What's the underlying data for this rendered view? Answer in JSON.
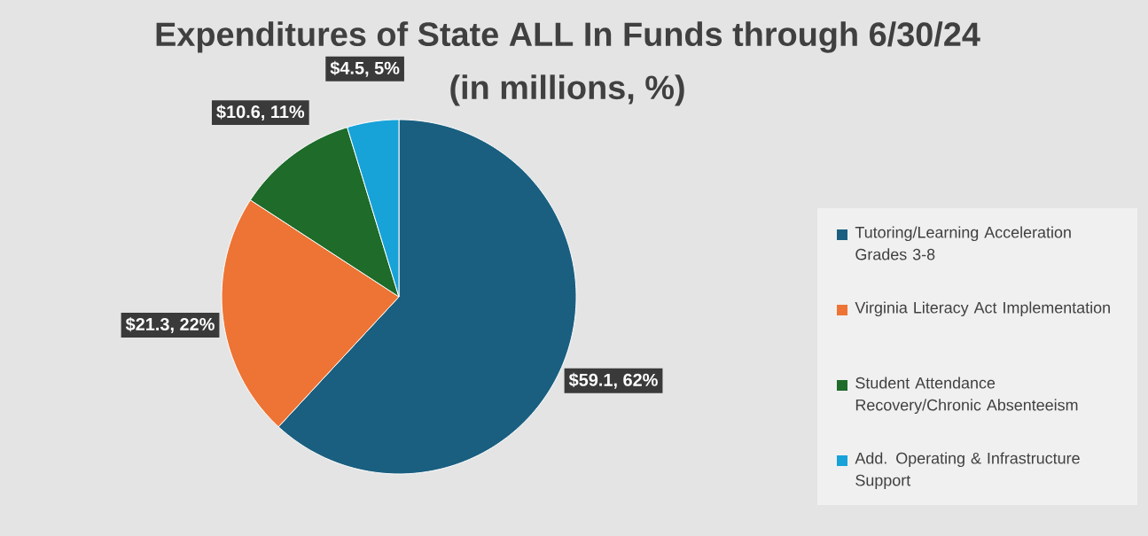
{
  "chart_data": {
    "type": "pie",
    "title": "Expenditures of State ALL In Funds through 6/30/24",
    "subtitle": "(in millions, %)",
    "categories": [
      "Tutoring/Learning Acceleration Grades 3-8",
      "Virginia Literacy Act Implementation",
      "Student Attendance Recovery/Chronic Absenteeism",
      "Add. Operating & Infrastructure Support"
    ],
    "values": [
      59.1,
      21.3,
      10.6,
      4.5
    ],
    "colors": [
      "#1a5f80",
      "#ed7434",
      "#1e6b2a",
      "#17a2d8"
    ],
    "value_labels": [
      "$59.1, 62%",
      "$21.3, 22%",
      "$10.6, 11%",
      "$4.5, 5%"
    ],
    "legend": "right"
  }
}
